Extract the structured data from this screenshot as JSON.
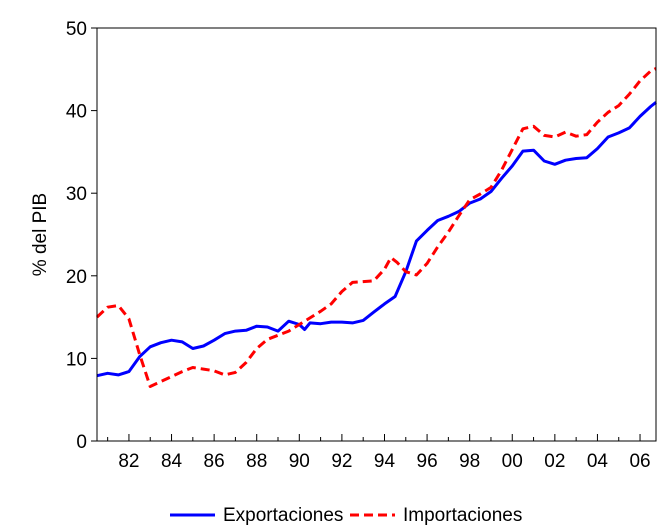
{
  "chart_data": {
    "type": "line",
    "title": "",
    "xlabel": "",
    "ylabel": "% del PIB",
    "xlim": [
      1980.5,
      2006.75
    ],
    "ylim": [
      0,
      50
    ],
    "yticks": [
      0,
      10,
      20,
      30,
      40,
      50
    ],
    "xticks": [
      {
        "value": 1982,
        "label": "82"
      },
      {
        "value": 1984,
        "label": "84"
      },
      {
        "value": 1986,
        "label": "86"
      },
      {
        "value": 1988,
        "label": "88"
      },
      {
        "value": 1990,
        "label": "90"
      },
      {
        "value": 1992,
        "label": "92"
      },
      {
        "value": 1994,
        "label": "94"
      },
      {
        "value": 1996,
        "label": "96"
      },
      {
        "value": 1998,
        "label": "98"
      },
      {
        "value": 2000,
        "label": "00"
      },
      {
        "value": 2002,
        "label": "02"
      },
      {
        "value": 2004,
        "label": "04"
      },
      {
        "value": 2006,
        "label": "06"
      }
    ],
    "grid": false,
    "legend_position": "bottom",
    "series": [
      {
        "name": "Exportaciones",
        "color": "#0000ff",
        "style": "solid",
        "points": [
          [
            1980.5,
            7.9
          ],
          [
            1981.0,
            8.2
          ],
          [
            1981.5,
            8.0
          ],
          [
            1982.0,
            8.4
          ],
          [
            1982.5,
            10.2
          ],
          [
            1983.0,
            11.4
          ],
          [
            1983.5,
            11.9
          ],
          [
            1984.0,
            12.2
          ],
          [
            1984.5,
            12.0
          ],
          [
            1985.0,
            11.2
          ],
          [
            1985.5,
            11.5
          ],
          [
            1986.0,
            12.2
          ],
          [
            1986.5,
            13.0
          ],
          [
            1987.0,
            13.3
          ],
          [
            1987.5,
            13.4
          ],
          [
            1988.0,
            13.9
          ],
          [
            1988.5,
            13.8
          ],
          [
            1989.0,
            13.3
          ],
          [
            1989.5,
            14.5
          ],
          [
            1990.0,
            14.1
          ],
          [
            1990.25,
            13.5
          ],
          [
            1990.5,
            14.3
          ],
          [
            1991.0,
            14.2
          ],
          [
            1991.5,
            14.4
          ],
          [
            1992.0,
            14.4
          ],
          [
            1992.5,
            14.3
          ],
          [
            1993.0,
            14.6
          ],
          [
            1993.5,
            15.6
          ],
          [
            1994.0,
            16.6
          ],
          [
            1994.5,
            17.5
          ],
          [
            1995.0,
            20.5
          ],
          [
            1995.5,
            24.2
          ],
          [
            1996.0,
            25.5
          ],
          [
            1996.5,
            26.7
          ],
          [
            1997.0,
            27.2
          ],
          [
            1997.5,
            27.8
          ],
          [
            1998.0,
            28.8
          ],
          [
            1998.5,
            29.3
          ],
          [
            1999.0,
            30.2
          ],
          [
            1999.5,
            31.8
          ],
          [
            2000.0,
            33.3
          ],
          [
            2000.5,
            35.1
          ],
          [
            2001.0,
            35.2
          ],
          [
            2001.5,
            33.9
          ],
          [
            2002.0,
            33.5
          ],
          [
            2002.5,
            34.0
          ],
          [
            2003.0,
            34.2
          ],
          [
            2003.5,
            34.3
          ],
          [
            2004.0,
            35.4
          ],
          [
            2004.5,
            36.8
          ],
          [
            2005.0,
            37.3
          ],
          [
            2005.5,
            37.9
          ],
          [
            2006.0,
            39.3
          ],
          [
            2006.5,
            40.5
          ],
          [
            2006.75,
            41.0
          ]
        ]
      },
      {
        "name": "Importaciones",
        "color": "#ff0000",
        "style": "dashed",
        "points": [
          [
            1980.5,
            15.0
          ],
          [
            1981.0,
            16.2
          ],
          [
            1981.5,
            16.4
          ],
          [
            1982.0,
            14.8
          ],
          [
            1982.5,
            10.5
          ],
          [
            1983.0,
            6.6
          ],
          [
            1983.5,
            7.2
          ],
          [
            1984.0,
            7.8
          ],
          [
            1984.5,
            8.4
          ],
          [
            1985.0,
            8.9
          ],
          [
            1985.5,
            8.7
          ],
          [
            1986.0,
            8.5
          ],
          [
            1986.5,
            8.0
          ],
          [
            1987.0,
            8.3
          ],
          [
            1987.5,
            9.5
          ],
          [
            1988.0,
            11.2
          ],
          [
            1988.5,
            12.3
          ],
          [
            1989.0,
            12.8
          ],
          [
            1989.5,
            13.3
          ],
          [
            1990.0,
            14.1
          ],
          [
            1990.5,
            14.9
          ],
          [
            1991.0,
            15.7
          ],
          [
            1991.5,
            16.6
          ],
          [
            1992.0,
            18.1
          ],
          [
            1992.5,
            19.2
          ],
          [
            1993.0,
            19.3
          ],
          [
            1993.5,
            19.4
          ],
          [
            1994.0,
            20.8
          ],
          [
            1994.3,
            22.2
          ],
          [
            1994.6,
            21.6
          ],
          [
            1995.0,
            20.5
          ],
          [
            1995.5,
            20.1
          ],
          [
            1996.0,
            21.5
          ],
          [
            1996.5,
            23.5
          ],
          [
            1997.0,
            25.3
          ],
          [
            1997.5,
            27.3
          ],
          [
            1998.0,
            29.2
          ],
          [
            1998.5,
            29.9
          ],
          [
            1999.0,
            30.7
          ],
          [
            1999.5,
            32.8
          ],
          [
            2000.0,
            35.3
          ],
          [
            2000.5,
            37.8
          ],
          [
            2001.0,
            38.1
          ],
          [
            2001.5,
            37.0
          ],
          [
            2002.0,
            36.8
          ],
          [
            2002.5,
            37.4
          ],
          [
            2003.0,
            36.9
          ],
          [
            2003.5,
            37.1
          ],
          [
            2004.0,
            38.6
          ],
          [
            2004.5,
            39.8
          ],
          [
            2005.0,
            40.6
          ],
          [
            2005.5,
            42.0
          ],
          [
            2006.0,
            43.6
          ],
          [
            2006.5,
            44.8
          ],
          [
            2006.75,
            45.1
          ]
        ]
      }
    ]
  }
}
